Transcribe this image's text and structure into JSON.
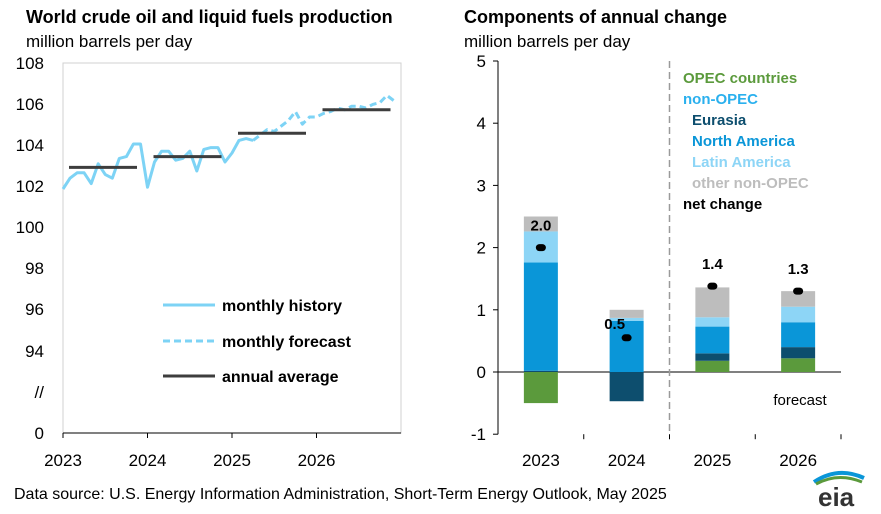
{
  "left_title": "World crude oil and liquid fuels production",
  "left_subtitle": "million barrels per day",
  "right_title": "Components of annual change",
  "right_subtitle": "million barrels per day",
  "footer": "Data source: U.S. Energy Information Administration, Short-Term Energy Outlook, May 2025",
  "logo_text": "eia",
  "colors": {
    "history_line": "#7dd3f5",
    "annual_line": "#3d3d3d",
    "opec": "#5b9a3c",
    "eurasia": "#0d4e6e",
    "north_america": "#0a96d8",
    "latin_america": "#8dd5f6",
    "other_non_opec": "#bdbdbd",
    "non_opec_label": "#2ab0ee"
  },
  "chart_data": [
    {
      "type": "line",
      "title": "World crude oil and liquid fuels production",
      "ylabel": "million barrels per day",
      "ylim_upper": [
        92,
        108
      ],
      "ylim_lower_break": [
        0,
        92
      ],
      "y_ticks": [
        "108",
        "106",
        "104",
        "102",
        "100",
        "98",
        "96",
        "94",
        "//",
        "0"
      ],
      "x_ticks": [
        "2023",
        "2024",
        "2025",
        "2026"
      ],
      "grid": false,
      "legend": [
        "monthly history",
        "monthly forecast",
        "annual average"
      ],
      "legend_position": "bottom-right",
      "series": [
        {
          "name": "monthly history",
          "style": "solid",
          "x": [
            "2023-01",
            "2023-02",
            "2023-03",
            "2023-04",
            "2023-05",
            "2023-06",
            "2023-07",
            "2023-08",
            "2023-09",
            "2023-10",
            "2023-11",
            "2023-12",
            "2024-01",
            "2024-02",
            "2024-03",
            "2024-04",
            "2024-05",
            "2024-06",
            "2024-07",
            "2024-08",
            "2024-09",
            "2024-10",
            "2024-11",
            "2024-12",
            "2025-01",
            "2025-02",
            "2025-03",
            "2025-04"
          ],
          "values": [
            101.0,
            101.6,
            101.9,
            101.9,
            101.3,
            102.4,
            101.8,
            101.6,
            102.7,
            102.8,
            103.5,
            103.5,
            101.1,
            102.5,
            103.1,
            103.1,
            102.6,
            102.7,
            103.1,
            102.0,
            103.2,
            103.3,
            103.3,
            102.5,
            103.0,
            103.7,
            103.8,
            103.7
          ]
        },
        {
          "name": "monthly forecast",
          "style": "dashed",
          "x": [
            "2025-04",
            "2025-05",
            "2025-06",
            "2025-07",
            "2025-08",
            "2025-09",
            "2025-10",
            "2025-11",
            "2025-12",
            "2026-01",
            "2026-02",
            "2026-03",
            "2026-04",
            "2026-05",
            "2026-06",
            "2026-07",
            "2026-08",
            "2026-09",
            "2026-10",
            "2026-11",
            "2026-12"
          ],
          "values": [
            103.7,
            104.0,
            104.3,
            104.2,
            104.5,
            104.8,
            105.3,
            104.6,
            105.0,
            105.0,
            105.2,
            105.3,
            105.5,
            105.4,
            105.6,
            105.6,
            105.5,
            105.7,
            105.8,
            106.2,
            105.9
          ]
        },
        {
          "name": "annual average",
          "style": "solid-dark",
          "x": [
            "2023",
            "2024",
            "2025",
            "2026"
          ],
          "values": [
            102.2,
            102.8,
            104.1,
            105.4
          ]
        }
      ]
    },
    {
      "type": "bar",
      "stacked": true,
      "title": "Components of annual change",
      "ylabel": "million barrels per day",
      "ylim": [
        -1,
        5
      ],
      "y_ticks": [
        "5",
        "4",
        "3",
        "2",
        "1",
        "0",
        "-1"
      ],
      "categories": [
        "2023",
        "2024",
        "2025",
        "2026"
      ],
      "forecast_divider_after": "2024",
      "forecast_label": "forecast",
      "legend_position": "top-right",
      "series": [
        {
          "name": "OPEC countries",
          "values": [
            -0.5,
            0.0,
            0.18,
            0.22
          ]
        },
        {
          "name": "Eurasia",
          "values": [
            0.02,
            -0.47,
            0.12,
            0.18
          ]
        },
        {
          "name": "North America",
          "values": [
            1.74,
            0.82,
            0.43,
            0.4
          ]
        },
        {
          "name": "Latin America",
          "values": [
            0.5,
            0.05,
            0.15,
            0.25
          ]
        },
        {
          "name": "other non-OPEC",
          "values": [
            0.24,
            0.13,
            0.48,
            0.25
          ]
        }
      ],
      "legend_entries": [
        "OPEC countries",
        "non-OPEC",
        "Eurasia",
        "North America",
        "Latin America",
        "other non-OPEC",
        "net change"
      ],
      "net_change": {
        "name": "net change",
        "values": [
          2.0,
          0.55,
          1.38,
          1.3
        ],
        "labels": [
          "2.0",
          "0.5",
          "1.4",
          "1.3"
        ]
      }
    }
  ]
}
